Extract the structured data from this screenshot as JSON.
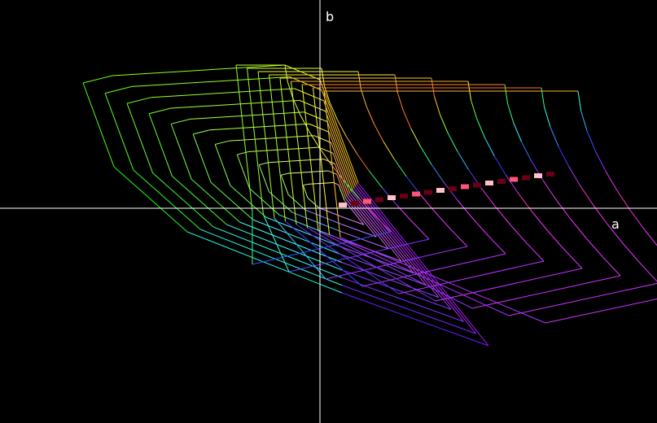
{
  "axes": {
    "x_label": "a",
    "y_label": "b"
  }
}
